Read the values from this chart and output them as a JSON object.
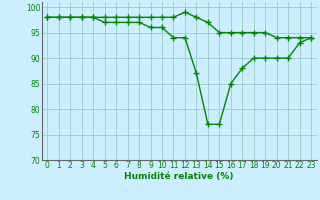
{
  "xlabel": "Humidité relative (%)",
  "background_color": "#cceeff",
  "grid_color": "#99cccc",
  "line_color": "#008800",
  "hours": [
    0,
    1,
    2,
    3,
    4,
    5,
    6,
    7,
    8,
    9,
    10,
    11,
    12,
    13,
    14,
    15,
    16,
    17,
    18,
    19,
    20,
    21,
    22,
    23
  ],
  "line1": [
    98,
    98,
    98,
    98,
    98,
    98,
    98,
    98,
    98,
    98,
    98,
    98,
    99,
    98,
    97,
    95,
    95,
    95,
    95,
    95,
    94,
    94,
    94,
    94
  ],
  "line2": [
    98,
    98,
    98,
    98,
    98,
    97,
    97,
    97,
    97,
    96,
    96,
    94,
    94,
    87,
    77,
    77,
    85,
    88,
    90,
    90,
    90,
    90,
    93,
    94
  ],
  "ylim": [
    70,
    101
  ],
  "yticks": [
    70,
    75,
    80,
    85,
    90,
    95,
    100
  ],
  "xticks": [
    0,
    1,
    2,
    3,
    4,
    5,
    6,
    7,
    8,
    9,
    10,
    11,
    12,
    13,
    14,
    15,
    16,
    17,
    18,
    19,
    20,
    21,
    22,
    23
  ],
  "marker": "+",
  "markersize": 4,
  "linewidth": 1.0,
  "tick_fontsize": 5.5,
  "xlabel_fontsize": 6.5
}
